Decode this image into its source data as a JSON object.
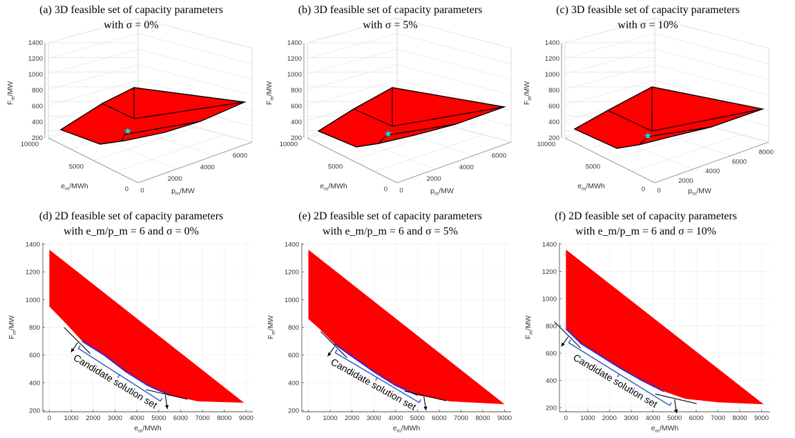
{
  "chart_data": [
    {
      "panel": "a",
      "type": "scatter",
      "title_line1": "(a) 3D feasible set of capacity parameters",
      "title_line2": "with σ = 0%",
      "xlabel": "p_m/MW",
      "ylabel": "e_m/MWh",
      "zlabel": "F_m/MW",
      "x_ticks": [
        0,
        2000,
        4000,
        6000
      ],
      "y_ticks": [
        0,
        5000,
        10000
      ],
      "z_ticks": [
        200,
        400,
        600,
        800,
        1000,
        1200,
        1400
      ],
      "fill_color": "#ff0000",
      "marker": "star",
      "marker_color": "#00e5e5"
    },
    {
      "panel": "b",
      "type": "scatter",
      "title_line1": "(b) 3D feasible set of capacity parameters",
      "title_line2": "with σ = 5%",
      "xlabel": "p_m/MW",
      "ylabel": "e_m/MWh",
      "zlabel": "F_m/MW",
      "x_ticks": [
        0,
        2000,
        4000,
        6000
      ],
      "y_ticks": [
        0,
        5000,
        10000
      ],
      "z_ticks": [
        200,
        400,
        600,
        800,
        1000,
        1200,
        1400
      ],
      "fill_color": "#ff0000",
      "marker": "star",
      "marker_color": "#00e5e5"
    },
    {
      "panel": "c",
      "type": "scatter",
      "title_line1": "(c) 3D feasible set of capacity parameters",
      "title_line2": "with σ = 10%",
      "xlabel": "p_m/MW",
      "ylabel": "e_m/MWh",
      "zlabel": "F_m/MW",
      "x_ticks": [
        0,
        2000,
        4000,
        6000,
        8000
      ],
      "y_ticks": [
        0,
        5000,
        10000
      ],
      "z_ticks": [
        200,
        400,
        600,
        800,
        1000,
        1200,
        1400
      ],
      "fill_color": "#ff0000",
      "marker": "star",
      "marker_color": "#00e5e5"
    },
    {
      "panel": "d",
      "type": "area",
      "title_line1": "(d) 2D feasible set of capacity parameters",
      "title_line2": "with e_m/p_m = 6 and σ = 0%",
      "xlabel": "e_m/MWh",
      "ylabel": "F_m/MW",
      "xlim": [
        -300,
        9300
      ],
      "ylim": [
        190,
        1410
      ],
      "x_ticks": [
        0,
        1000,
        2000,
        3000,
        4000,
        5000,
        6000,
        7000,
        8000,
        9000
      ],
      "y_ticks": [
        200,
        400,
        600,
        800,
        1000,
        1200,
        1400
      ],
      "region_upper": [
        [
          0,
          1360
        ],
        [
          8900,
          255
        ]
      ],
      "region_lower": [
        [
          0,
          950
        ],
        [
          800,
          820
        ],
        [
          1500,
          700
        ],
        [
          2500,
          600
        ],
        [
          3500,
          480
        ],
        [
          4500,
          380
        ],
        [
          5500,
          310
        ],
        [
          6800,
          265
        ],
        [
          8900,
          255
        ]
      ],
      "candidate_set": [
        [
          1300,
          690
        ],
        [
          5300,
          310
        ]
      ],
      "annotation": "Candidate solution set",
      "fill_color": "#ff0000"
    },
    {
      "panel": "e",
      "type": "area",
      "title_line1": "(e) 2D feasible set of capacity parameters",
      "title_line2": "with e_m/p_m = 6 and σ = 5%",
      "xlabel": "e_m/MWh",
      "ylabel": "F_m/MW",
      "xlim": [
        -300,
        9300
      ],
      "ylim": [
        190,
        1410
      ],
      "x_ticks": [
        0,
        1000,
        2000,
        3000,
        4000,
        5000,
        6000,
        7000,
        8000,
        9000
      ],
      "y_ticks": [
        200,
        400,
        600,
        800,
        1000,
        1200,
        1400
      ],
      "region_upper": [
        [
          0,
          1360
        ],
        [
          9000,
          245
        ]
      ],
      "region_lower": [
        [
          0,
          860
        ],
        [
          500,
          790
        ],
        [
          1200,
          680
        ],
        [
          2000,
          590
        ],
        [
          3000,
          480
        ],
        [
          4000,
          380
        ],
        [
          5000,
          310
        ],
        [
          6500,
          265
        ],
        [
          9000,
          245
        ]
      ],
      "candidate_set": [
        [
          1200,
          660
        ],
        [
          5300,
          300
        ]
      ],
      "annotation": "Candidate solution set",
      "fill_color": "#ff0000"
    },
    {
      "panel": "f",
      "type": "area",
      "title_line1": "(f) 2D feasible set of capacity parameters",
      "title_line2": "with e_m/p_m = 6 and σ = 10%",
      "xlabel": "e_m/MWh",
      "ylabel": "F_m/MW",
      "xlim": [
        -300,
        9400
      ],
      "ylim": [
        170,
        1410
      ],
      "x_ticks": [
        0,
        1000,
        2000,
        3000,
        4000,
        5000,
        6000,
        7000,
        8000,
        9000
      ],
      "y_ticks": [
        200,
        400,
        600,
        800,
        1000,
        1200,
        1400
      ],
      "region_upper": [
        [
          0,
          1360
        ],
        [
          9100,
          225
        ]
      ],
      "region_lower": [
        [
          0,
          780
        ],
        [
          700,
          670
        ],
        [
          1500,
          590
        ],
        [
          2500,
          490
        ],
        [
          3500,
          400
        ],
        [
          4500,
          320
        ],
        [
          5500,
          265
        ],
        [
          7000,
          240
        ],
        [
          9100,
          225
        ]
      ],
      "candidate_set": [
        [
          100,
          720
        ],
        [
          5000,
          260
        ]
      ],
      "annotation": "Candidate solution set",
      "fill_color": "#ff0000"
    }
  ]
}
